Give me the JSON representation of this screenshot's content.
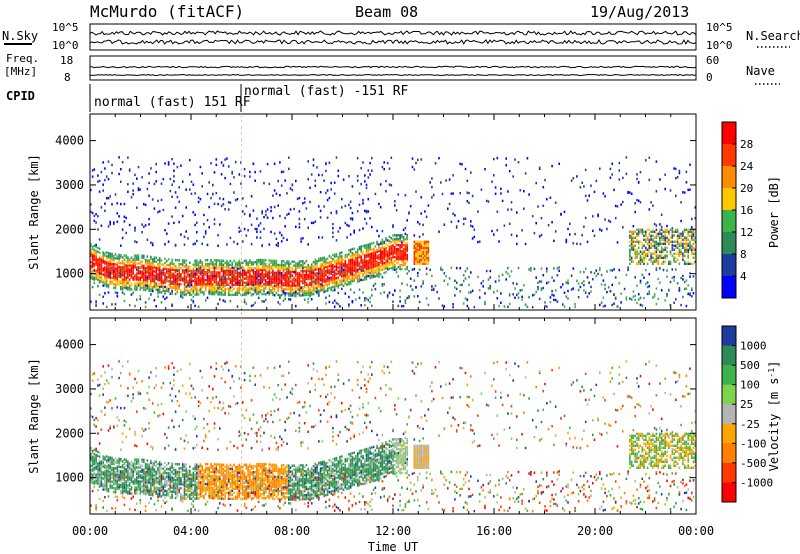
{
  "header": {
    "station": "McMurdo (fitACF)",
    "beam": "Beam 08",
    "date": "19/Aug/2013"
  },
  "top_panels": {
    "nsky_label": "N.Sky",
    "nsearch_label": "N.Search",
    "nsky_ticks": [
      "10^5",
      "10^0"
    ],
    "nsearch_ticks": [
      "10^5",
      "10^0"
    ],
    "freq_label_1": "Freq.",
    "freq_label_2": "[MHz]",
    "freq_ticks": [
      "18",
      "8"
    ],
    "nave_label": "Nave",
    "nave_ticks": [
      "60",
      "0"
    ],
    "cpid_label": "CPID",
    "cpid_segments": [
      {
        "label": "normal (fast) 151 RF",
        "start_hour": 0,
        "end_hour": 6
      },
      {
        "label": "normal (fast) -151 RF",
        "start_hour": 6,
        "end_hour": 24
      }
    ]
  },
  "chart_data": [
    {
      "type": "heatmap",
      "title": "",
      "xlabel": "Time UT",
      "ylabel": "Slant Range [km]",
      "xlim": [
        0,
        24
      ],
      "ylim": [
        180,
        4600
      ],
      "x_ticks": [
        "00:00",
        "04:00",
        "08:00",
        "12:00",
        "16:00",
        "20:00",
        "00:00"
      ],
      "y_ticks": [
        1000,
        2000,
        3000,
        4000
      ],
      "colorbar_label": "Power [dB]",
      "colorbar_ticks": [
        "28",
        "24",
        "20",
        "16",
        "12",
        "8",
        "4"
      ],
      "colorbar_colors": [
        "#ff0000",
        "#ff3a00",
        "#ff8c00",
        "#ffc800",
        "#3cb44b",
        "#2e8b57",
        "#1e3ca0",
        "#0000ff"
      ],
      "main_echo_band": {
        "range_center_km": [
          1260,
          1050,
          1000,
          1000,
          940,
          900,
          880,
          900,
          880,
          880,
          900,
          880,
          860,
          880,
          960,
          1080,
          1200,
          1300,
          1460
        ],
        "time_hours": [
          0,
          0.7,
          1.3,
          2,
          2.7,
          3.3,
          4,
          4.7,
          5.3,
          6,
          6.7,
          7.3,
          8,
          8.7,
          9.3,
          10,
          10.7,
          11.3,
          12
        ]
      }
    },
    {
      "type": "heatmap",
      "title": "",
      "xlabel": "Time UT",
      "ylabel": "Slant Range [km]",
      "xlim": [
        0,
        24
      ],
      "ylim": [
        180,
        4600
      ],
      "x_ticks": [
        "00:00",
        "04:00",
        "08:00",
        "12:00",
        "16:00",
        "20:00",
        "00:00"
      ],
      "y_ticks": [
        1000,
        2000,
        3000,
        4000
      ],
      "colorbar_label": "Velocity [m s^-1]",
      "colorbar_ticks": [
        "1000",
        "500",
        "100",
        "25",
        "-25",
        "-100",
        "-500",
        "-1000"
      ],
      "colorbar_colors": [
        "#1e3ca0",
        "#2e8b57",
        "#3cb44b",
        "#7fd34e",
        "#b4b4b4",
        "#ffa500",
        "#ff7f00",
        "#ff3a00",
        "#ff0000"
      ]
    }
  ]
}
